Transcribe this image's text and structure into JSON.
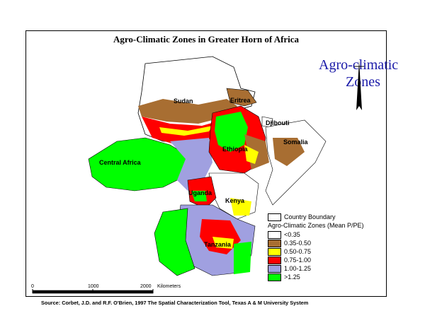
{
  "title": "Agro-Climatic Zones in Greater Horn of Africa",
  "overlay_title": {
    "line1": "Agro-climatic",
    "line2": "Zones"
  },
  "compass_icon": "north-arrow-icon",
  "countries": [
    {
      "key": "sudan",
      "label": "Sudan"
    },
    {
      "key": "eritrea",
      "label": "Eritrea"
    },
    {
      "key": "djibouti",
      "label": "Djibouti"
    },
    {
      "key": "somalia",
      "label": "Somalia"
    },
    {
      "key": "ethiopia",
      "label": "Ethiopia"
    },
    {
      "key": "central-africa",
      "label": "Central Africa"
    },
    {
      "key": "uganda",
      "label": "Uganda"
    },
    {
      "key": "kenya",
      "label": "Kenya"
    },
    {
      "key": "tanzania",
      "label": "Tanzania"
    }
  ],
  "legend": {
    "boundary_label": "Country Boundary",
    "title": "Agro-Climatic Zones (Mean P/PE)",
    "classes": [
      {
        "label": "<0.35",
        "color": "#ffffff"
      },
      {
        "label": "0.35-0.50",
        "color": "#a86e32"
      },
      {
        "label": "0.50-0.75",
        "color": "#ffff00"
      },
      {
        "label": "0.75-1.00",
        "color": "#ff0000"
      },
      {
        "label": "1.00-1.25",
        "color": "#a0a0e0"
      },
      {
        "label": ">1.25",
        "color": "#00ff00"
      }
    ]
  },
  "scale_bar": {
    "ticks": [
      "0",
      "1000",
      "2000"
    ],
    "unit": "Kilometers"
  },
  "source": "Source: Corbet, J.D. and R.F. O'Brien, 1997 The Spatial Characterization Tool, Texas A & M University System",
  "colors": {
    "overlay_text": "#1a1aa8",
    "frame": "#000000"
  }
}
